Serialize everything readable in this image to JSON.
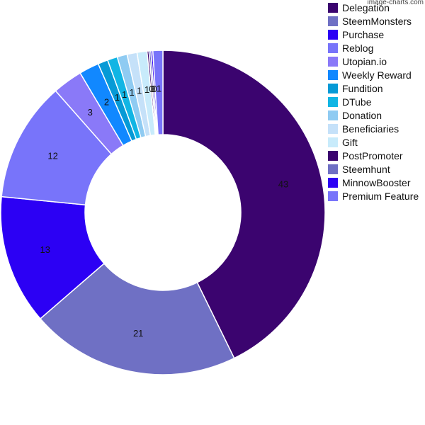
{
  "watermark": "image-charts.com",
  "chart_data": {
    "type": "pie",
    "donut": true,
    "legend_position": "right",
    "categories": [
      "Delegation",
      "SteemMonsters",
      "Purchase",
      "Reblog",
      "Utopian.io",
      "Weekly Reward",
      "Fundition",
      "DTube",
      "Donation",
      "Beneficiaries",
      "Gift",
      "PostPromoter",
      "Steemhunt",
      "MinnowBooster",
      "Premium Feature"
    ],
    "values": [
      43,
      21,
      13,
      12,
      3,
      2,
      1,
      1,
      1,
      1,
      1,
      0,
      0,
      0,
      1
    ],
    "labels": [
      "43",
      "21",
      "13",
      "12",
      "3",
      "2",
      "1",
      "1",
      "1",
      "1",
      "1",
      "0",
      "0",
      "0",
      "1"
    ],
    "colors": [
      "#3b046f",
      "#6f70c4",
      "#2c00f4",
      "#7874fa",
      "#8a79f8",
      "#1188ff",
      "#069ad6",
      "#11b5e4",
      "#8fcbf2",
      "#c5e1f9",
      "#c8ebfb",
      "#3b046f",
      "#6f70c4",
      "#2c00f4",
      "#7874fa"
    ]
  }
}
